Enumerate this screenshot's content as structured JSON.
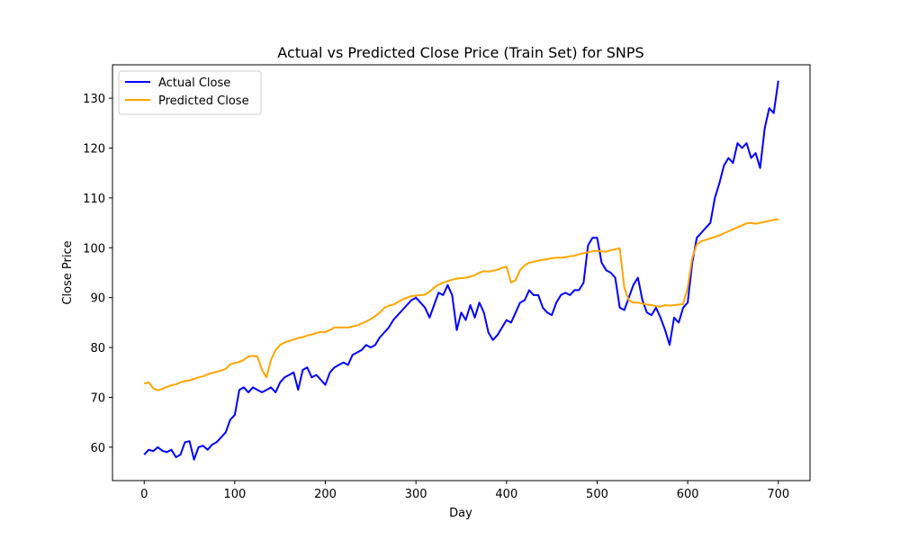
{
  "chart_data": {
    "type": "line",
    "title": "Actual vs Predicted Close Price (Train Set) for SNPS",
    "xlabel": "Day",
    "ylabel": "Close Price",
    "xlim": [
      -35,
      735
    ],
    "ylim": [
      53.3,
      136.7
    ],
    "xticks": [
      0,
      100,
      200,
      300,
      400,
      500,
      600,
      700
    ],
    "yticks": [
      60,
      70,
      80,
      90,
      100,
      110,
      120,
      130
    ],
    "grid": false,
    "legend_position": "top-left",
    "series": [
      {
        "name": "Actual Close",
        "color": "#0000ff",
        "x": [
          0,
          5,
          10,
          15,
          20,
          25,
          30,
          35,
          40,
          45,
          50,
          55,
          60,
          65,
          70,
          75,
          80,
          85,
          90,
          95,
          100,
          105,
          110,
          115,
          120,
          125,
          130,
          135,
          140,
          145,
          150,
          155,
          160,
          165,
          170,
          175,
          180,
          185,
          190,
          195,
          200,
          205,
          210,
          215,
          220,
          225,
          230,
          235,
          240,
          245,
          250,
          255,
          260,
          265,
          270,
          275,
          280,
          285,
          290,
          295,
          300,
          305,
          310,
          315,
          320,
          325,
          330,
          335,
          340,
          345,
          350,
          355,
          360,
          365,
          370,
          375,
          380,
          385,
          390,
          395,
          400,
          405,
          410,
          415,
          420,
          425,
          430,
          435,
          440,
          445,
          450,
          455,
          460,
          465,
          470,
          475,
          480,
          485,
          490,
          495,
          500,
          505,
          510,
          515,
          520,
          525,
          530,
          535,
          540,
          545,
          550,
          555,
          560,
          565,
          570,
          575,
          580,
          585,
          590,
          595,
          600,
          605,
          610,
          615,
          620,
          625,
          630,
          635,
          640,
          645,
          650,
          655,
          660,
          665,
          670,
          675,
          680,
          685,
          690,
          695,
          700
        ],
        "y": [
          58.5,
          59.5,
          59.2,
          60.0,
          59.3,
          59.0,
          59.5,
          58.0,
          58.5,
          61.0,
          61.2,
          57.5,
          60.0,
          60.3,
          59.5,
          60.5,
          61.0,
          62.0,
          63.0,
          65.5,
          66.5,
          71.5,
          72.0,
          71.0,
          72.0,
          71.5,
          71.0,
          71.5,
          72.0,
          71.0,
          73.0,
          74.0,
          74.5,
          75.0,
          71.5,
          75.5,
          76.0,
          74.0,
          74.5,
          73.5,
          72.5,
          75.0,
          76.0,
          76.5,
          77.0,
          76.5,
          78.5,
          79.0,
          79.5,
          80.5,
          80.0,
          80.5,
          82.0,
          83.0,
          84.0,
          85.5,
          86.5,
          87.5,
          88.5,
          89.5,
          90.0,
          89.0,
          88.0,
          86.0,
          88.5,
          91.0,
          90.5,
          92.5,
          90.5,
          83.5,
          87.0,
          85.5,
          88.5,
          86.0,
          89.0,
          87.0,
          83.0,
          81.5,
          82.5,
          84.0,
          85.5,
          85.0,
          87.0,
          89.0,
          89.5,
          91.5,
          90.5,
          90.5,
          88.0,
          87.0,
          86.5,
          89.0,
          90.5,
          91.0,
          90.5,
          91.5,
          91.5,
          93.0,
          100.5,
          102.0,
          102.0,
          97.0,
          95.5,
          95.0,
          94.0,
          88.0,
          87.5,
          90.0,
          92.5,
          94.0,
          89.5,
          87.0,
          86.5,
          88.0,
          86.0,
          83.5,
          80.5,
          86.0,
          85.0,
          88.0,
          89.0,
          97.0,
          102.0,
          103.0,
          104.0,
          105.0,
          110.0,
          113.0,
          116.5,
          118.0,
          117.0,
          121.0,
          120.0,
          121.0,
          118.0,
          119.0,
          116.0,
          124.0,
          128.0,
          127.0,
          133.5
        ]
      },
      {
        "name": "Predicted Close",
        "color": "#ffa500",
        "x": [
          0,
          5,
          10,
          15,
          20,
          25,
          30,
          35,
          40,
          45,
          50,
          55,
          60,
          65,
          70,
          75,
          80,
          85,
          90,
          95,
          100,
          105,
          110,
          115,
          120,
          125,
          130,
          135,
          140,
          145,
          150,
          155,
          160,
          165,
          170,
          175,
          180,
          185,
          190,
          195,
          200,
          205,
          210,
          215,
          220,
          225,
          230,
          235,
          240,
          245,
          250,
          255,
          260,
          265,
          270,
          275,
          280,
          285,
          290,
          295,
          300,
          305,
          310,
          315,
          320,
          325,
          330,
          335,
          340,
          345,
          350,
          355,
          360,
          365,
          370,
          375,
          380,
          385,
          390,
          395,
          400,
          405,
          410,
          415,
          420,
          425,
          430,
          435,
          440,
          445,
          450,
          455,
          460,
          465,
          470,
          475,
          480,
          485,
          490,
          495,
          500,
          505,
          510,
          515,
          520,
          525,
          530,
          535,
          540,
          545,
          550,
          555,
          560,
          565,
          570,
          575,
          580,
          585,
          590,
          595,
          600,
          605,
          610,
          615,
          620,
          625,
          630,
          635,
          640,
          645,
          650,
          655,
          660,
          665,
          670,
          675,
          680,
          685,
          690,
          695,
          700
        ],
        "y": [
          72.8,
          73.0,
          71.8,
          71.4,
          71.7,
          72.1,
          72.4,
          72.6,
          73.0,
          73.3,
          73.4,
          73.7,
          74.0,
          74.2,
          74.6,
          74.9,
          75.1,
          75.4,
          75.7,
          76.6,
          76.9,
          77.1,
          77.5,
          78.2,
          78.3,
          78.2,
          75.5,
          74.0,
          77.5,
          79.5,
          80.5,
          81.0,
          81.3,
          81.6,
          81.9,
          82.1,
          82.4,
          82.6,
          82.9,
          83.1,
          83.1,
          83.5,
          84.0,
          84.0,
          84.0,
          84.0,
          84.2,
          84.4,
          84.8,
          85.2,
          85.7,
          86.3,
          87.0,
          87.9,
          88.4,
          88.6,
          89.1,
          89.6,
          90.0,
          90.3,
          90.4,
          90.5,
          90.6,
          91.2,
          92.0,
          92.6,
          93.0,
          93.3,
          93.6,
          93.8,
          93.9,
          94.0,
          94.2,
          94.5,
          95.0,
          95.3,
          95.2,
          95.4,
          95.6,
          96.0,
          96.2,
          93.0,
          93.5,
          95.5,
          96.5,
          97.0,
          97.2,
          97.4,
          97.6,
          97.7,
          97.9,
          98.0,
          98.0,
          98.1,
          98.3,
          98.4,
          98.7,
          98.9,
          99.1,
          99.3,
          99.4,
          99.3,
          99.2,
          99.5,
          99.7,
          99.9,
          92.0,
          89.5,
          89.0,
          89.0,
          88.8,
          88.6,
          88.5,
          88.3,
          88.2,
          88.5,
          88.4,
          88.5,
          88.6,
          88.7,
          92.0,
          98.0,
          100.7,
          101.3,
          101.6,
          101.9,
          102.2,
          102.5,
          102.9,
          103.3,
          103.7,
          104.1,
          104.5,
          104.9,
          105.0,
          104.8,
          105.0,
          105.2,
          105.4,
          105.6,
          105.7
        ]
      }
    ]
  }
}
